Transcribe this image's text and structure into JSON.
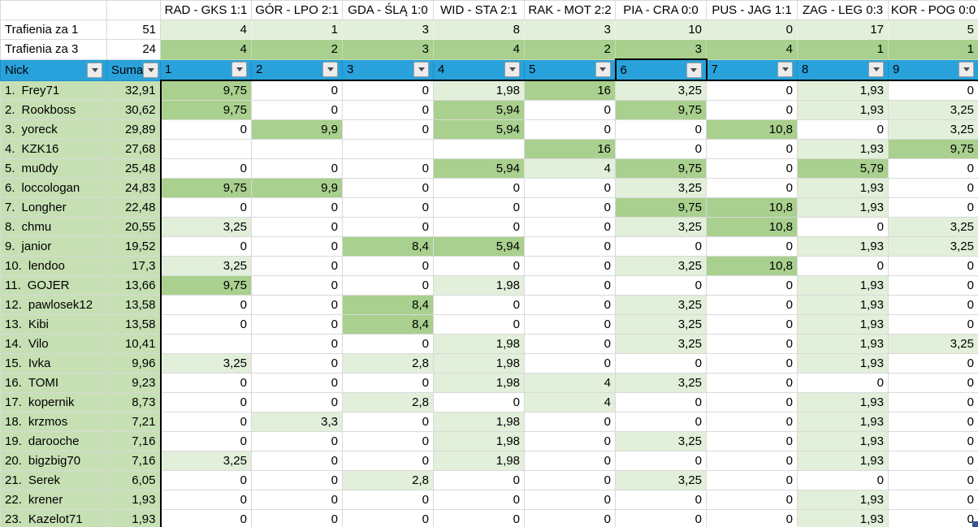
{
  "header": {
    "matches": [
      "RAD - GKS 1:1",
      "GÓR - LPO 2:1",
      "GDA - ŚLĄ 1:0",
      "WID - STA 2:1",
      "RAK - MOT 2:2",
      "PIA - CRA 0:0",
      "PUS - JAG 1:1",
      "ZAG - LEG 0:3",
      "KOR - POG 0:0"
    ]
  },
  "stats": {
    "hits_for_1": {
      "label": "Trafienia za 1",
      "total": "51",
      "values": [
        "4",
        "1",
        "3",
        "8",
        "3",
        "10",
        "0",
        "17",
        "5"
      ]
    },
    "hits_for_3": {
      "label": "Trafienia za 3",
      "total": "24",
      "values": [
        "4",
        "2",
        "3",
        "4",
        "2",
        "3",
        "4",
        "1",
        "1"
      ]
    }
  },
  "filter": {
    "nick_label": "Nick",
    "suma_label": "Suma",
    "cols": [
      "1",
      "2",
      "3",
      "4",
      "5",
      "6",
      "7",
      "8",
      "9"
    ],
    "selected_col": "6"
  },
  "players": [
    {
      "rank": "1.",
      "nick": "Frey71",
      "suma": "32,91",
      "points": [
        "9,75",
        "0",
        "0",
        "1,98",
        "16",
        "3,25",
        "0",
        "1,93",
        "0"
      ]
    },
    {
      "rank": "2.",
      "nick": "Rookboss",
      "suma": "30,62",
      "points": [
        "9,75",
        "0",
        "0",
        "5,94",
        "0",
        "9,75",
        "0",
        "1,93",
        "3,25"
      ]
    },
    {
      "rank": "3.",
      "nick": "yoreck",
      "suma": "29,89",
      "points": [
        "0",
        "9,9",
        "0",
        "5,94",
        "0",
        "0",
        "10,8",
        "0",
        "3,25"
      ]
    },
    {
      "rank": "4.",
      "nick": "KZK16",
      "suma": "27,68",
      "points": [
        "",
        "",
        "",
        "",
        "16",
        "0",
        "0",
        "1,93",
        "9,75"
      ]
    },
    {
      "rank": "5.",
      "nick": "mu0dy",
      "suma": "25,48",
      "points": [
        "0",
        "0",
        "0",
        "5,94",
        "4",
        "9,75",
        "0",
        "5,79",
        "0"
      ]
    },
    {
      "rank": "6.",
      "nick": "loccologan",
      "suma": "24,83",
      "points": [
        "9,75",
        "9,9",
        "0",
        "0",
        "0",
        "3,25",
        "0",
        "1,93",
        "0"
      ]
    },
    {
      "rank": "7.",
      "nick": "Longher",
      "suma": "22,48",
      "points": [
        "0",
        "0",
        "0",
        "0",
        "0",
        "9,75",
        "10,8",
        "1,93",
        "0"
      ]
    },
    {
      "rank": "8.",
      "nick": "chmu",
      "suma": "20,55",
      "points": [
        "3,25",
        "0",
        "0",
        "0",
        "0",
        "3,25",
        "10,8",
        "0",
        "3,25"
      ]
    },
    {
      "rank": "9.",
      "nick": "janior",
      "suma": "19,52",
      "points": [
        "0",
        "0",
        "8,4",
        "5,94",
        "0",
        "0",
        "0",
        "1,93",
        "3,25"
      ]
    },
    {
      "rank": "10.",
      "nick": "lendoo",
      "suma": "17,3",
      "points": [
        "3,25",
        "0",
        "0",
        "0",
        "0",
        "3,25",
        "10,8",
        "0",
        "0"
      ]
    },
    {
      "rank": "11.",
      "nick": "GOJER",
      "suma": "13,66",
      "points": [
        "9,75",
        "0",
        "0",
        "1,98",
        "0",
        "0",
        "0",
        "1,93",
        "0"
      ]
    },
    {
      "rank": "12.",
      "nick": "pawlosek12",
      "suma": "13,58",
      "points": [
        "0",
        "0",
        "8,4",
        "0",
        "0",
        "3,25",
        "0",
        "1,93",
        "0"
      ]
    },
    {
      "rank": "13.",
      "nick": "Kibi",
      "suma": "13,58",
      "points": [
        "0",
        "0",
        "8,4",
        "0",
        "0",
        "3,25",
        "0",
        "1,93",
        "0"
      ]
    },
    {
      "rank": "14.",
      "nick": "Vilo",
      "suma": "10,41",
      "points": [
        "",
        "0",
        "0",
        "1,98",
        "0",
        "3,25",
        "0",
        "1,93",
        "3,25"
      ]
    },
    {
      "rank": "15.",
      "nick": "Ivka",
      "suma": "9,96",
      "points": [
        "3,25",
        "0",
        "2,8",
        "1,98",
        "0",
        "0",
        "0",
        "1,93",
        "0"
      ]
    },
    {
      "rank": "16.",
      "nick": "TOMI",
      "suma": "9,23",
      "points": [
        "0",
        "0",
        "0",
        "1,98",
        "4",
        "3,25",
        "0",
        "0",
        "0"
      ]
    },
    {
      "rank": "17.",
      "nick": "kopernik",
      "suma": "8,73",
      "points": [
        "0",
        "0",
        "2,8",
        "0",
        "4",
        "0",
        "0",
        "1,93",
        "0"
      ]
    },
    {
      "rank": "18.",
      "nick": "krzmos",
      "suma": "7,21",
      "points": [
        "0",
        "3,3",
        "0",
        "1,98",
        "0",
        "0",
        "0",
        "1,93",
        "0"
      ]
    },
    {
      "rank": "19.",
      "nick": "darooche",
      "suma": "7,16",
      "points": [
        "0",
        "0",
        "0",
        "1,98",
        "0",
        "3,25",
        "0",
        "1,93",
        "0"
      ]
    },
    {
      "rank": "20.",
      "nick": "bigzbig70",
      "suma": "7,16",
      "points": [
        "3,25",
        "0",
        "0",
        "1,98",
        "0",
        "0",
        "0",
        "1,93",
        "0"
      ]
    },
    {
      "rank": "21.",
      "nick": "Serek",
      "suma": "6,05",
      "points": [
        "0",
        "0",
        "2,8",
        "0",
        "0",
        "3,25",
        "0",
        "0",
        "0"
      ]
    },
    {
      "rank": "22.",
      "nick": "krener",
      "suma": "1,93",
      "points": [
        "0",
        "0",
        "0",
        "0",
        "0",
        "0",
        "0",
        "1,93",
        "0"
      ]
    },
    {
      "rank": "23.",
      "nick": "Kazelot71",
      "suma": "1,93",
      "points": [
        "0",
        "0",
        "0",
        "0",
        "0",
        "0",
        "0",
        "1,93",
        "0"
      ]
    }
  ],
  "colors": {
    "filter_row_blue": "#29a2dc",
    "score_high_green": "#a9d08e",
    "score_low_green": "#e2efda",
    "name_column_green": "#c6e0b4",
    "data_grid_border": "#000000",
    "light_grid_border": "#d9d9d9",
    "fill_handle_blue": "#2f5597"
  },
  "icons": {
    "filter_dropdown": "▼"
  }
}
